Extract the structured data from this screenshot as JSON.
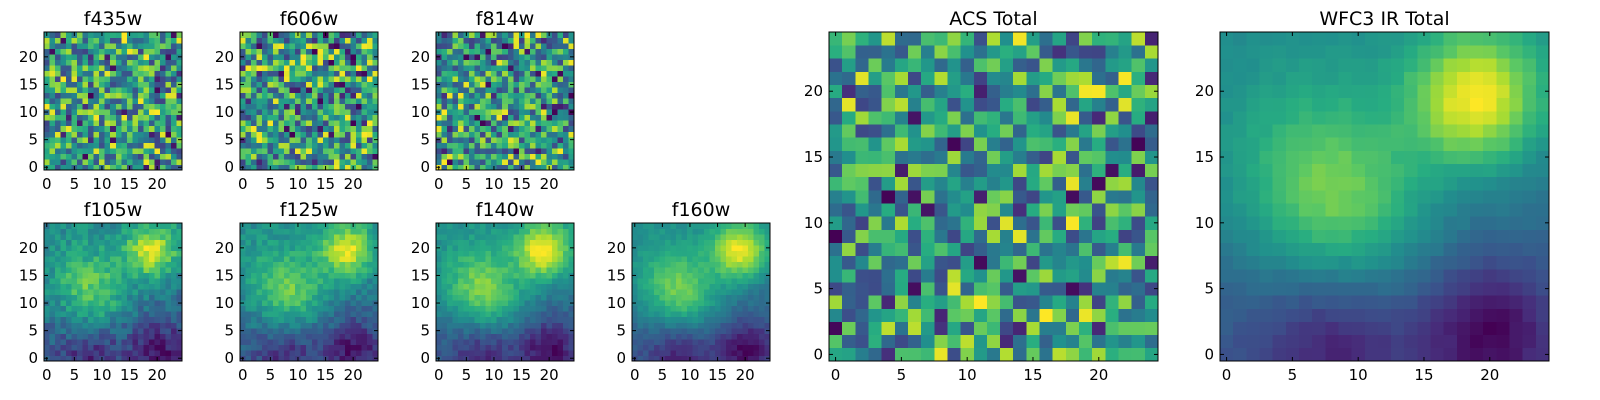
{
  "chart_data": [
    {
      "type": "heatmap",
      "title": "f435w",
      "colormap": "viridis",
      "seed": 11,
      "pattern": "noise",
      "xlim": [
        -0.5,
        24.5
      ],
      "ylim": [
        -0.5,
        24.5
      ],
      "xticks": [
        0,
        5,
        10,
        15,
        20
      ],
      "yticks": [
        0,
        5,
        10,
        15,
        20
      ],
      "xticklabels": [
        "0",
        "5",
        "10",
        "15",
        "20"
      ],
      "yticklabels": [
        "0",
        "5",
        "10",
        "15",
        "20"
      ]
    },
    {
      "type": "heatmap",
      "title": "f606w",
      "colormap": "viridis",
      "seed": 23,
      "pattern": "noise",
      "xlim": [
        -0.5,
        24.5
      ],
      "ylim": [
        -0.5,
        24.5
      ],
      "xticks": [
        0,
        5,
        10,
        15,
        20
      ],
      "yticks": [
        0,
        5,
        10,
        15,
        20
      ],
      "xticklabels": [
        "0",
        "5",
        "10",
        "15",
        "20"
      ],
      "yticklabels": [
        "0",
        "5",
        "10",
        "15",
        "20"
      ]
    },
    {
      "type": "heatmap",
      "title": "f814w",
      "colormap": "viridis",
      "seed": 37,
      "pattern": "noise",
      "xlim": [
        -0.5,
        24.5
      ],
      "ylim": [
        -0.5,
        24.5
      ],
      "xticks": [
        0,
        5,
        10,
        15,
        20
      ],
      "yticks": [
        0,
        5,
        10,
        15,
        20
      ],
      "xticklabels": [
        "0",
        "5",
        "10",
        "15",
        "20"
      ],
      "yticklabels": [
        "0",
        "5",
        "10",
        "15",
        "20"
      ]
    },
    {
      "type": "heatmap",
      "title": "f105w",
      "colormap": "viridis",
      "seed": 41,
      "pattern": "smooth",
      "noise": 0.32,
      "xlim": [
        -0.5,
        24.5
      ],
      "ylim": [
        -0.5,
        24.5
      ],
      "xticks": [
        0,
        5,
        10,
        15,
        20
      ],
      "yticks": [
        0,
        5,
        10,
        15,
        20
      ],
      "xticklabels": [
        "0",
        "5",
        "10",
        "15",
        "20"
      ],
      "yticklabels": [
        "0",
        "5",
        "10",
        "15",
        "20"
      ]
    },
    {
      "type": "heatmap",
      "title": "f125w",
      "colormap": "viridis",
      "seed": 53,
      "pattern": "smooth",
      "noise": 0.24,
      "xlim": [
        -0.5,
        24.5
      ],
      "ylim": [
        -0.5,
        24.5
      ],
      "xticks": [
        0,
        5,
        10,
        15,
        20
      ],
      "yticks": [
        0,
        5,
        10,
        15,
        20
      ],
      "xticklabels": [
        "0",
        "5",
        "10",
        "15",
        "20"
      ],
      "yticklabels": [
        "0",
        "5",
        "10",
        "15",
        "20"
      ]
    },
    {
      "type": "heatmap",
      "title": "f140w",
      "colormap": "viridis",
      "seed": 67,
      "pattern": "smooth",
      "noise": 0.16,
      "xlim": [
        -0.5,
        24.5
      ],
      "ylim": [
        -0.5,
        24.5
      ],
      "xticks": [
        0,
        5,
        10,
        15,
        20
      ],
      "yticks": [
        0,
        5,
        10,
        15,
        20
      ],
      "xticklabels": [
        "0",
        "5",
        "10",
        "15",
        "20"
      ],
      "yticklabels": [
        "0",
        "5",
        "10",
        "15",
        "20"
      ]
    },
    {
      "type": "heatmap",
      "title": "f160w",
      "colormap": "viridis",
      "seed": 79,
      "pattern": "smooth",
      "noise": 0.12,
      "xlim": [
        -0.5,
        24.5
      ],
      "ylim": [
        -0.5,
        24.5
      ],
      "xticks": [
        0,
        5,
        10,
        15,
        20
      ],
      "yticks": [
        0,
        5,
        10,
        15,
        20
      ],
      "xticklabels": [
        "0",
        "5",
        "10",
        "15",
        "20"
      ],
      "yticklabels": [
        "0",
        "5",
        "10",
        "15",
        "20"
      ]
    },
    {
      "type": "heatmap",
      "title": "ACS Total",
      "colormap": "viridis",
      "seed": 97,
      "pattern": "noise",
      "xlim": [
        -0.5,
        24.5
      ],
      "ylim": [
        -0.5,
        24.5
      ],
      "xticks": [
        0,
        5,
        10,
        15,
        20
      ],
      "yticks": [
        0,
        5,
        10,
        15,
        20
      ],
      "xticklabels": [
        "0",
        "5",
        "10",
        "15",
        "20"
      ],
      "yticklabels": [
        "0",
        "5",
        "10",
        "15",
        "20"
      ]
    },
    {
      "type": "heatmap",
      "title": "WFC3 IR Total",
      "colormap": "viridis",
      "seed": 101,
      "pattern": "smooth",
      "noise": 0.06,
      "xlim": [
        -0.5,
        24.5
      ],
      "ylim": [
        -0.5,
        24.5
      ],
      "xticks": [
        0,
        5,
        10,
        15,
        20
      ],
      "yticks": [
        0,
        5,
        10,
        15,
        20
      ],
      "xticklabels": [
        "0",
        "5",
        "10",
        "15",
        "20"
      ],
      "yticklabels": [
        "0",
        "5",
        "10",
        "15",
        "20"
      ]
    }
  ]
}
